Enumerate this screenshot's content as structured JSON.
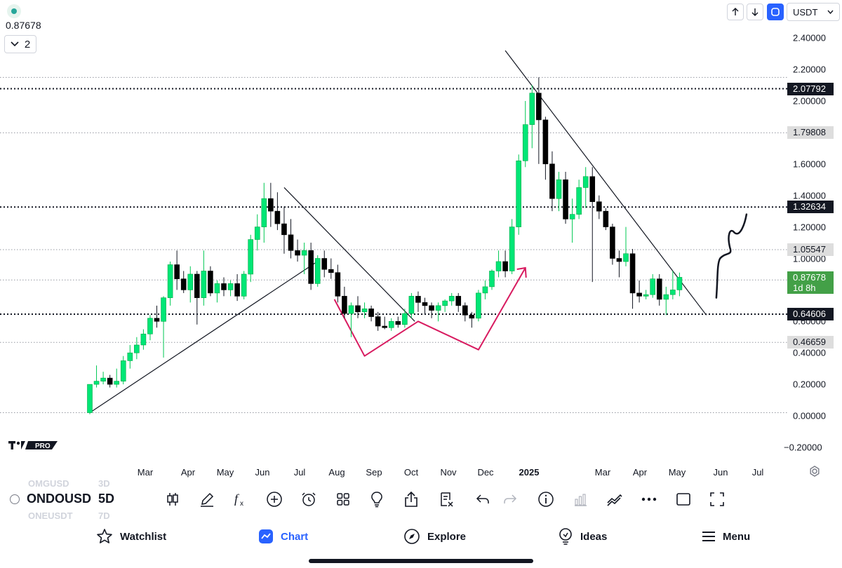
{
  "header": {
    "current_price": "0.87678",
    "indicator_count": "2",
    "quote_currency": "USDT"
  },
  "toolbar": {
    "symbol": "ONDOUSD",
    "symbol_above": "OMGUSD",
    "symbol_below": "ONEUSDT",
    "interval": "5D",
    "interval_above": "3D",
    "interval_below": "7D"
  },
  "bottom_nav": {
    "watchlist": "Watchlist",
    "chart": "Chart",
    "explore": "Explore",
    "ideas": "Ideas",
    "menu": "Menu"
  },
  "brand": {
    "logo_text": "PRO"
  },
  "colors": {
    "up_candle": "#00e676",
    "down_candle": "#000000",
    "accent": "#2962ff",
    "last_price_badge": "#43a047",
    "pattern_line": "#d81b60"
  },
  "chart_data": {
    "type": "candlestick",
    "symbol": "ONDOUSDT",
    "interval": "5D",
    "y_axis_ticks": [
      "2.40000",
      "2.20000",
      "2.00000",
      "1.80000",
      "1.60000",
      "1.40000",
      "1.20000",
      "1.00000",
      "0.80000",
      "0.60000",
      "0.40000",
      "0.20000",
      "0.00000",
      "−0.20000"
    ],
    "x_axis_ticks": [
      "Mar",
      "Apr",
      "May",
      "Jun",
      "Jul",
      "Aug",
      "Sep",
      "Oct",
      "Nov",
      "Dec",
      "2025",
      "Mar",
      "Apr",
      "May",
      "Jun",
      "Jul"
    ],
    "price_levels": [
      {
        "label": "2.07792",
        "value": 2.07792,
        "style": "dotted-bold",
        "badge": "black"
      },
      {
        "label": "1.79808",
        "value": 1.79808,
        "style": "dotted",
        "badge": "grey"
      },
      {
        "label": "1.32634",
        "value": 1.32634,
        "style": "dotted-bold",
        "badge": "black"
      },
      {
        "label": "1.05547",
        "value": 1.05547,
        "style": "dotted",
        "badge": "grey"
      },
      {
        "label": "0.86326",
        "value": 0.86326,
        "style": "dotted",
        "badge": "none"
      },
      {
        "label": "0.64606",
        "value": 0.64606,
        "style": "dotted-bold",
        "badge": "black"
      },
      {
        "label": "0.46659",
        "value": 0.46659,
        "style": "dotted",
        "badge": "grey"
      }
    ],
    "extra_dotted_levels": [
      2.15,
      0.02
    ],
    "last_price": {
      "value": 0.87678,
      "label": "0.87678",
      "countdown": "1d 8h"
    },
    "candles": [
      {
        "o": 0.02,
        "h": 0.2,
        "l": 0.01,
        "c": 0.2
      },
      {
        "o": 0.2,
        "h": 0.32,
        "l": 0.18,
        "c": 0.22
      },
      {
        "o": 0.22,
        "h": 0.28,
        "l": 0.2,
        "c": 0.24
      },
      {
        "o": 0.24,
        "h": 0.26,
        "l": 0.18,
        "c": 0.2
      },
      {
        "o": 0.2,
        "h": 0.3,
        "l": 0.18,
        "c": 0.22
      },
      {
        "o": 0.22,
        "h": 0.38,
        "l": 0.2,
        "c": 0.35
      },
      {
        "o": 0.35,
        "h": 0.45,
        "l": 0.3,
        "c": 0.4
      },
      {
        "o": 0.4,
        "h": 0.5,
        "l": 0.36,
        "c": 0.45
      },
      {
        "o": 0.45,
        "h": 0.55,
        "l": 0.42,
        "c": 0.52
      },
      {
        "o": 0.52,
        "h": 0.64,
        "l": 0.48,
        "c": 0.62
      },
      {
        "o": 0.62,
        "h": 0.7,
        "l": 0.56,
        "c": 0.6
      },
      {
        "o": 0.6,
        "h": 0.76,
        "l": 0.37,
        "c": 0.75
      },
      {
        "o": 0.75,
        "h": 0.98,
        "l": 0.7,
        "c": 0.96
      },
      {
        "o": 0.96,
        "h": 1.05,
        "l": 0.8,
        "c": 0.87
      },
      {
        "o": 0.87,
        "h": 0.92,
        "l": 0.78,
        "c": 0.8
      },
      {
        "o": 0.8,
        "h": 0.95,
        "l": 0.72,
        "c": 0.9
      },
      {
        "o": 0.9,
        "h": 0.92,
        "l": 0.58,
        "c": 0.75
      },
      {
        "o": 0.75,
        "h": 1.05,
        "l": 0.7,
        "c": 0.92
      },
      {
        "o": 0.92,
        "h": 0.95,
        "l": 0.76,
        "c": 0.78
      },
      {
        "o": 0.78,
        "h": 0.86,
        "l": 0.72,
        "c": 0.84
      },
      {
        "o": 0.84,
        "h": 0.88,
        "l": 0.76,
        "c": 0.8
      },
      {
        "o": 0.8,
        "h": 0.86,
        "l": 0.76,
        "c": 0.84
      },
      {
        "o": 0.84,
        "h": 0.9,
        "l": 0.73,
        "c": 0.76
      },
      {
        "o": 0.76,
        "h": 0.92,
        "l": 0.74,
        "c": 0.9
      },
      {
        "o": 0.9,
        "h": 1.15,
        "l": 0.85,
        "c": 1.12
      },
      {
        "o": 1.12,
        "h": 1.28,
        "l": 1.05,
        "c": 1.2
      },
      {
        "o": 1.2,
        "h": 1.48,
        "l": 1.1,
        "c": 1.38
      },
      {
        "o": 1.38,
        "h": 1.48,
        "l": 1.2,
        "c": 1.3
      },
      {
        "o": 1.3,
        "h": 1.42,
        "l": 1.18,
        "c": 1.22
      },
      {
        "o": 1.22,
        "h": 1.33,
        "l": 1.03,
        "c": 1.15
      },
      {
        "o": 1.15,
        "h": 1.25,
        "l": 1.0,
        "c": 1.05
      },
      {
        "o": 1.05,
        "h": 1.12,
        "l": 0.98,
        "c": 1.02
      },
      {
        "o": 1.02,
        "h": 1.1,
        "l": 0.9,
        "c": 1.05
      },
      {
        "o": 1.05,
        "h": 1.1,
        "l": 0.8,
        "c": 0.84
      },
      {
        "o": 0.84,
        "h": 1.02,
        "l": 0.82,
        "c": 1.0
      },
      {
        "o": 1.0,
        "h": 1.05,
        "l": 0.88,
        "c": 0.93
      },
      {
        "o": 0.93,
        "h": 1.0,
        "l": 0.87,
        "c": 0.91
      },
      {
        "o": 0.91,
        "h": 0.96,
        "l": 0.72,
        "c": 0.76
      },
      {
        "o": 0.76,
        "h": 0.82,
        "l": 0.62,
        "c": 0.65
      },
      {
        "o": 0.65,
        "h": 0.72,
        "l": 0.5,
        "c": 0.7
      },
      {
        "o": 0.7,
        "h": 0.76,
        "l": 0.62,
        "c": 0.66
      },
      {
        "o": 0.66,
        "h": 0.72,
        "l": 0.62,
        "c": 0.68
      },
      {
        "o": 0.68,
        "h": 0.7,
        "l": 0.6,
        "c": 0.63
      },
      {
        "o": 0.63,
        "h": 0.66,
        "l": 0.54,
        "c": 0.57
      },
      {
        "o": 0.57,
        "h": 0.63,
        "l": 0.55,
        "c": 0.56
      },
      {
        "o": 0.56,
        "h": 0.62,
        "l": 0.54,
        "c": 0.6
      },
      {
        "o": 0.6,
        "h": 0.63,
        "l": 0.56,
        "c": 0.58
      },
      {
        "o": 0.58,
        "h": 0.68,
        "l": 0.56,
        "c": 0.65
      },
      {
        "o": 0.65,
        "h": 0.78,
        "l": 0.62,
        "c": 0.76
      },
      {
        "o": 0.76,
        "h": 0.79,
        "l": 0.66,
        "c": 0.72
      },
      {
        "o": 0.72,
        "h": 0.75,
        "l": 0.65,
        "c": 0.7
      },
      {
        "o": 0.7,
        "h": 0.72,
        "l": 0.62,
        "c": 0.67
      },
      {
        "o": 0.67,
        "h": 0.72,
        "l": 0.6,
        "c": 0.7
      },
      {
        "o": 0.7,
        "h": 0.74,
        "l": 0.66,
        "c": 0.73
      },
      {
        "o": 0.73,
        "h": 0.78,
        "l": 0.7,
        "c": 0.76
      },
      {
        "o": 0.76,
        "h": 0.78,
        "l": 0.66,
        "c": 0.7
      },
      {
        "o": 0.7,
        "h": 0.72,
        "l": 0.6,
        "c": 0.64
      },
      {
        "o": 0.64,
        "h": 0.66,
        "l": 0.56,
        "c": 0.62
      },
      {
        "o": 0.62,
        "h": 0.8,
        "l": 0.6,
        "c": 0.78
      },
      {
        "o": 0.78,
        "h": 0.86,
        "l": 0.74,
        "c": 0.82
      },
      {
        "o": 0.82,
        "h": 0.93,
        "l": 0.8,
        "c": 0.92
      },
      {
        "o": 0.92,
        "h": 1.05,
        "l": 0.88,
        "c": 0.98
      },
      {
        "o": 0.98,
        "h": 1.05,
        "l": 0.88,
        "c": 0.92
      },
      {
        "o": 0.92,
        "h": 1.25,
        "l": 0.9,
        "c": 1.2
      },
      {
        "o": 1.2,
        "h": 1.66,
        "l": 1.15,
        "c": 1.62
      },
      {
        "o": 1.62,
        "h": 2.0,
        "l": 1.58,
        "c": 1.85
      },
      {
        "o": 1.85,
        "h": 2.1,
        "l": 1.7,
        "c": 2.05
      },
      {
        "o": 2.05,
        "h": 2.15,
        "l": 1.6,
        "c": 1.88
      },
      {
        "o": 1.88,
        "h": 1.9,
        "l": 1.5,
        "c": 1.6
      },
      {
        "o": 1.6,
        "h": 1.68,
        "l": 1.3,
        "c": 1.38
      },
      {
        "o": 1.38,
        "h": 1.55,
        "l": 1.3,
        "c": 1.5
      },
      {
        "o": 1.5,
        "h": 1.55,
        "l": 1.22,
        "c": 1.25
      },
      {
        "o": 1.25,
        "h": 1.38,
        "l": 1.1,
        "c": 1.28
      },
      {
        "o": 1.28,
        "h": 1.5,
        "l": 1.25,
        "c": 1.45
      },
      {
        "o": 1.45,
        "h": 1.58,
        "l": 1.32,
        "c": 1.52
      },
      {
        "o": 1.52,
        "h": 1.58,
        "l": 0.85,
        "c": 1.36
      },
      {
        "o": 1.36,
        "h": 1.4,
        "l": 1.25,
        "c": 1.3
      },
      {
        "o": 1.3,
        "h": 1.32,
        "l": 1.18,
        "c": 1.2
      },
      {
        "o": 1.2,
        "h": 1.22,
        "l": 0.96,
        "c": 1.0
      },
      {
        "o": 1.0,
        "h": 1.05,
        "l": 0.88,
        "c": 0.98
      },
      {
        "o": 0.98,
        "h": 1.2,
        "l": 0.95,
        "c": 1.03
      },
      {
        "o": 1.03,
        "h": 1.06,
        "l": 0.68,
        "c": 0.78
      },
      {
        "o": 0.78,
        "h": 0.86,
        "l": 0.72,
        "c": 0.76
      },
      {
        "o": 0.76,
        "h": 0.8,
        "l": 0.74,
        "c": 0.77
      },
      {
        "o": 0.77,
        "h": 0.9,
        "l": 0.75,
        "c": 0.87
      },
      {
        "o": 0.87,
        "h": 0.9,
        "l": 0.7,
        "c": 0.74
      },
      {
        "o": 0.74,
        "h": 0.82,
        "l": 0.64,
        "c": 0.77
      },
      {
        "o": 0.77,
        "h": 0.92,
        "l": 0.74,
        "c": 0.8
      },
      {
        "o": 0.8,
        "h": 0.91,
        "l": 0.76,
        "c": 0.88
      }
    ],
    "annotations": {
      "trendlines": [
        {
          "name": "uptrend-1",
          "p1": [
            0,
            0.02
          ],
          "p2": [
            34.3,
            0.99
          ]
        },
        {
          "name": "downtrend-1",
          "p1": [
            29,
            1.45
          ],
          "p2": [
            48.5,
            0.6
          ]
        },
        {
          "name": "downtrend-2",
          "p1": [
            62,
            2.32
          ],
          "p2": [
            92,
            0.64
          ]
        }
      ],
      "w_pattern": [
        [
          36.5,
          0.74
        ],
        [
          41,
          0.38
        ],
        [
          49,
          0.6
        ],
        [
          58,
          0.42
        ],
        [
          65,
          0.94
        ]
      ],
      "w_arrow_head": [
        65,
        0.94
      ],
      "projection": [
        [
          93.5,
          0.75
        ],
        [
          98,
          1.28
        ]
      ]
    }
  }
}
